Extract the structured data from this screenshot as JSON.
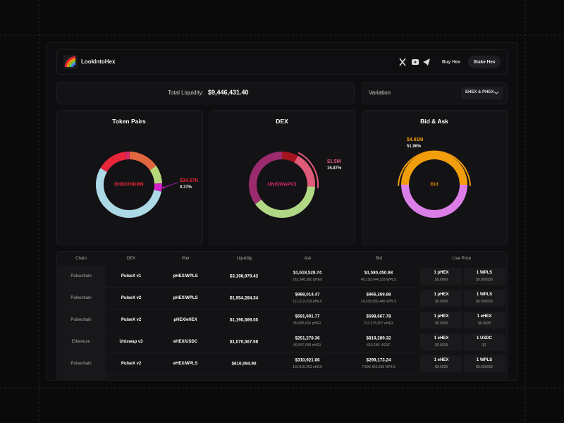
{
  "header": {
    "brand": "LookIntoHex",
    "buy": "Buy Hex",
    "stake": "Stake Hex"
  },
  "summary": {
    "label": "Total Liquidity:",
    "value": "$9,446,431.40",
    "variation_label": "Variation",
    "variation_option": "EHEX & PHEX"
  },
  "donuts": [
    {
      "title": "Token Pairs",
      "center": "EHEX/HDRN",
      "center_color": "#e8253a",
      "segments": [
        {
          "value": 15,
          "color": "#e8253a"
        },
        {
          "value": 2,
          "color": "#d6286b"
        },
        {
          "value": 15,
          "color": "#e0673f"
        },
        {
          "value": 9,
          "color": "#b5d97a"
        },
        {
          "value": 4,
          "color": "#d41ec8"
        },
        {
          "value": 55,
          "color": "#add8e6"
        }
      ],
      "highlight": 4,
      "callout": {
        "amount": "$34.57K",
        "share": "0.37%",
        "color": "#e8253a"
      }
    },
    {
      "title": "DEX",
      "center": "UNISWAPV3",
      "center_color": "#d6286b",
      "segments": [
        {
          "value": 8,
          "color": "#a3141f"
        },
        {
          "value": 18,
          "color": "#e05a7a"
        },
        {
          "value": 39,
          "color": "#b1d884"
        },
        {
          "value": 35,
          "color": "#9b2a6e"
        }
      ],
      "highlight": 1,
      "callout": {
        "amount": "$1.5M",
        "share": "15.87%",
        "color": "#e05a7a"
      }
    },
    {
      "title": "Bid & Ask",
      "center": "Bid",
      "center_color": "#c77a08",
      "segments": [
        {
          "value": 50,
          "color": "#f29d0c"
        },
        {
          "value": 50,
          "color": "#dc7ee8"
        }
      ],
      "highlight": 0,
      "callout": {
        "amount": "$4.91M",
        "share": "51.96%",
        "color": "#f29d0c"
      }
    }
  ],
  "table": {
    "columns": [
      "Chain",
      "DEX",
      "Pair",
      "Liquidity",
      "Ask",
      "Bid",
      "Live Price"
    ],
    "rows": [
      [
        "Pulsechain",
        "PulseX v1",
        "pHEX/WPLS",
        "$3,198,979.42",
        "$1,618,528.74",
        "162,348,380 pHEX",
        "$1,580,450.68",
        "40,130,044,333 WPLS",
        "1 pHEX",
        "$0.0069",
        "1 WPLS",
        "$0.000039"
      ],
      [
        "Pulsechain",
        "PulseX v2",
        "pHEX/WPLS",
        "$1,954,284.34",
        "$988,014.47",
        "111,313,319 pHEX",
        "$966,269.88",
        "24,535,080,445 WPLS",
        "1 pHEX",
        "$0.0069",
        "1 WPLS",
        "$0.000039"
      ],
      [
        "Pulsechain",
        "PulseX v2",
        "pHEX/eHEX",
        "$1,190,569.55",
        "$591,901.77",
        "85,685,816 pHEX",
        "$598,667.78",
        "213,375,657 eHEX",
        "1 pHEX",
        "$0.0069",
        "1 eHEX",
        "$0.0028"
      ],
      [
        "Ethereum",
        "Uniswap v3",
        "eHEX/USDC",
        "$1,070,567.68",
        "$251,278.36",
        "89,557,658 eHEX",
        "$819,289.32",
        "819,289 USDC",
        "1 eHEX",
        "$0.0028",
        "1 USDC",
        "$1"
      ],
      [
        "Pulsechain",
        "PulseX v2",
        "eHEX/WPLS",
        "$610,094.90",
        "$310,921.66",
        "110,815,263 eHEX",
        "$299,173.24",
        "7,596,463,236 WPLS",
        "1 eHEX",
        "$0.0028",
        "1 WPLS",
        "$0.000039"
      ]
    ]
  }
}
